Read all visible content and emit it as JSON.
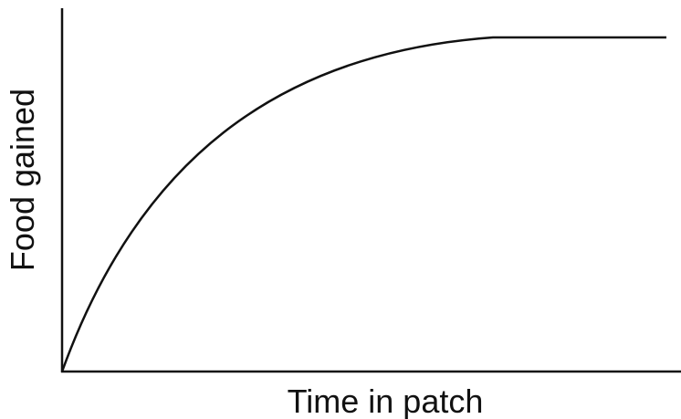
{
  "axes": {
    "x_label": "Time in patch",
    "y_label": "Food gained"
  }
}
